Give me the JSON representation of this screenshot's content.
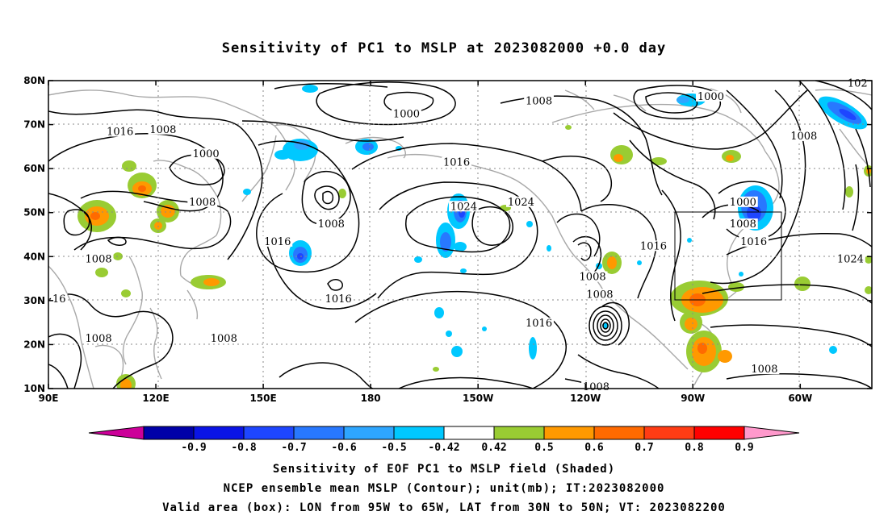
{
  "title": "Sensitivity of PC1 to MSLP at 2023082000 +0.0 day",
  "map": {
    "lon_labels": [
      "90E",
      "120E",
      "150E",
      "180",
      "150W",
      "120W",
      "90W",
      "60W"
    ],
    "lat_labels": [
      "80N",
      "70N",
      "60N",
      "50N",
      "40N",
      "30N",
      "20N",
      "10N"
    ],
    "lon_values": [
      90,
      120,
      150,
      180,
      210,
      240,
      270,
      300
    ],
    "lat_values": [
      80,
      70,
      60,
      50,
      40,
      30,
      20,
      10
    ],
    "lon_range": [
      90,
      320
    ],
    "lat_range": [
      10,
      80
    ],
    "grid": "dotted",
    "contour_labels": [
      {
        "text": "1016",
        "lon": 110,
        "lat": 68
      },
      {
        "text": "1008",
        "lon": 122,
        "lat": 68.5
      },
      {
        "text": "1000",
        "lon": 134,
        "lat": 63
      },
      {
        "text": "1008",
        "lon": 133,
        "lat": 52
      },
      {
        "text": "1008",
        "lon": 104,
        "lat": 39
      },
      {
        "text": "16",
        "lon": 93,
        "lat": 30
      },
      {
        "text": "1008",
        "lon": 104,
        "lat": 21
      },
      {
        "text": "1008",
        "lon": 139,
        "lat": 21
      },
      {
        "text": "1016",
        "lon": 154,
        "lat": 43
      },
      {
        "text": "1008",
        "lon": 169,
        "lat": 47
      },
      {
        "text": "1016",
        "lon": 171,
        "lat": 30
      },
      {
        "text": "1000",
        "lon": 190,
        "lat": 72
      },
      {
        "text": "1016",
        "lon": 204,
        "lat": 61
      },
      {
        "text": "1024",
        "lon": 206,
        "lat": 51
      },
      {
        "text": "1024",
        "lon": 222,
        "lat": 52
      },
      {
        "text": "1008",
        "lon": 227,
        "lat": 75
      },
      {
        "text": "1016",
        "lon": 227,
        "lat": 24.5
      },
      {
        "text": "1008",
        "lon": 242,
        "lat": 35
      },
      {
        "text": "1008",
        "lon": 244,
        "lat": 31
      },
      {
        "text": "1008",
        "lon": 243,
        "lat": 10
      },
      {
        "text": "1016",
        "lon": 259,
        "lat": 42
      },
      {
        "text": "1000",
        "lon": 275,
        "lat": 76
      },
      {
        "text": "1008",
        "lon": 301,
        "lat": 67
      },
      {
        "text": "1000",
        "lon": 284,
        "lat": 52
      },
      {
        "text": "1008",
        "lon": 284,
        "lat": 47
      },
      {
        "text": "1016",
        "lon": 287,
        "lat": 43
      },
      {
        "text": "1008",
        "lon": 290,
        "lat": 14
      },
      {
        "text": "1024",
        "lon": 314,
        "lat": 39
      },
      {
        "text": "102",
        "lon": 316,
        "lat": 79
      }
    ]
  },
  "legend": {
    "ticks": [
      "-0.9",
      "-0.8",
      "-0.7",
      "-0.6",
      "-0.5",
      "-0.42",
      "0.42",
      "0.5",
      "0.6",
      "0.7",
      "0.8",
      "0.9"
    ],
    "colors": [
      "#cc0099",
      "#0000a8",
      "#0a14e6",
      "#1e46ff",
      "#2878ff",
      "#2ea6ff",
      "#00c8ff",
      "#ffffff",
      "#99cc33",
      "#ff9900",
      "#ff6a00",
      "#ff3c14",
      "#ff0000",
      "#ff99cc"
    ]
  },
  "captions": [
    "Sensitivity of EOF PC1 to MSLP field (Shaded)",
    "NCEP ensemble mean MSLP (Contour); unit(mb); IT:2023082000",
    "Valid area (box): LON from 95W to 65W, LAT from 30N to 50N; VT: 2023082200"
  ]
}
